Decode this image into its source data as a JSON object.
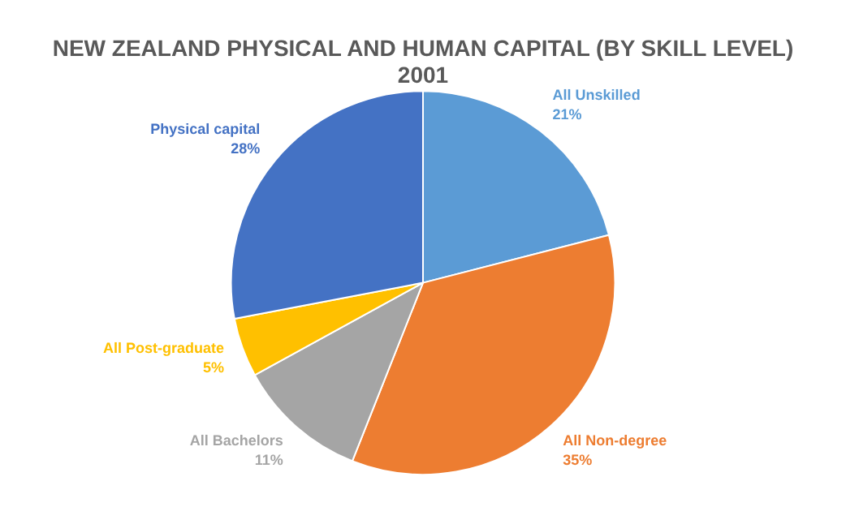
{
  "chart_data": {
    "type": "pie",
    "title": "NEW ZEALAND PHYSICAL AND HUMAN CAPITAL (BY SKILL LEVEL)\n2001",
    "categories": [
      "All Unskilled",
      "All Non-degree",
      "All Bachelors",
      "All Post-graduate",
      "Physical capital"
    ],
    "values": [
      21,
      35,
      11,
      5,
      28
    ],
    "colors": [
      "#5b9bd5",
      "#ed7d31",
      "#a5a5a5",
      "#ffc000",
      "#4472c4"
    ],
    "value_labels": [
      "21%",
      "35%",
      "11%",
      "5%",
      "28%"
    ],
    "legend": false
  }
}
